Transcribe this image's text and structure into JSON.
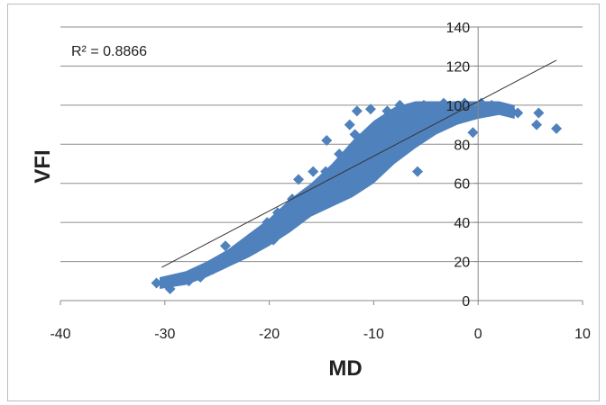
{
  "chart_data": {
    "type": "scatter",
    "title": "",
    "xlabel": "MD",
    "ylabel": "VFI",
    "xlim": [
      -40,
      10
    ],
    "ylim": [
      0,
      140
    ],
    "x_ticks": [
      -40,
      -30,
      -20,
      -10,
      0,
      10
    ],
    "y_ticks": [
      0,
      20,
      40,
      60,
      80,
      100,
      120,
      140
    ],
    "x_tick_labels": [
      "-40",
      "-30",
      "-20",
      "-10",
      "0",
      "10"
    ],
    "y_tick_labels": [
      "0",
      "20",
      "40",
      "60",
      "80",
      "100",
      "120",
      "140"
    ],
    "grid": "horizontal",
    "legend": "none",
    "annotation": "R² = 0.8866",
    "marker_color": "#4f81bd",
    "trendline_color": "#333333",
    "trendline": {
      "x": [
        -30.3,
        7.5
      ],
      "y": [
        17,
        123
      ]
    },
    "points": [
      {
        "x": -30.8,
        "y": 9
      },
      {
        "x": -29.5,
        "y": 6
      },
      {
        "x": -27.7,
        "y": 10
      },
      {
        "x": -26.6,
        "y": 12
      },
      {
        "x": -25.4,
        "y": 16
      },
      {
        "x": -24.3,
        "y": 19
      },
      {
        "x": -23.5,
        "y": 22
      },
      {
        "x": -22.5,
        "y": 27
      },
      {
        "x": -24.2,
        "y": 28
      },
      {
        "x": -21.8,
        "y": 30
      },
      {
        "x": -20.8,
        "y": 34
      },
      {
        "x": -19.6,
        "y": 31
      },
      {
        "x": -20.2,
        "y": 40
      },
      {
        "x": -19.2,
        "y": 45
      },
      {
        "x": -18.2,
        "y": 42
      },
      {
        "x": -17.8,
        "y": 52
      },
      {
        "x": -16.6,
        "y": 48
      },
      {
        "x": -17.2,
        "y": 62
      },
      {
        "x": -16.0,
        "y": 57
      },
      {
        "x": -15.2,
        "y": 55
      },
      {
        "x": -15.8,
        "y": 66
      },
      {
        "x": -14.6,
        "y": 66
      },
      {
        "x": -14.2,
        "y": 52
      },
      {
        "x": -13.3,
        "y": 75
      },
      {
        "x": -14.5,
        "y": 82
      },
      {
        "x": -13.0,
        "y": 62
      },
      {
        "x": -12.2,
        "y": 70
      },
      {
        "x": -11.2,
        "y": 80
      },
      {
        "x": -11.8,
        "y": 85
      },
      {
        "x": -12.3,
        "y": 90
      },
      {
        "x": -11.6,
        "y": 97
      },
      {
        "x": -10.3,
        "y": 98
      },
      {
        "x": -9.5,
        "y": 90
      },
      {
        "x": -10.0,
        "y": 75
      },
      {
        "x": -8.7,
        "y": 97
      },
      {
        "x": -8.3,
        "y": 85
      },
      {
        "x": -7.5,
        "y": 100
      },
      {
        "x": -6.8,
        "y": 94
      },
      {
        "x": -6.3,
        "y": 88
      },
      {
        "x": -5.8,
        "y": 66
      },
      {
        "x": -5.2,
        "y": 100
      },
      {
        "x": -4.3,
        "y": 97
      },
      {
        "x": -3.3,
        "y": 101
      },
      {
        "x": -2.3,
        "y": 96
      },
      {
        "x": -1.3,
        "y": 101
      },
      {
        "x": -0.5,
        "y": 86
      },
      {
        "x": 0.3,
        "y": 101
      },
      {
        "x": 1.3,
        "y": 100
      },
      {
        "x": 2.2,
        "y": 99
      },
      {
        "x": 3.2,
        "y": 97
      },
      {
        "x": 3.8,
        "y": 96
      },
      {
        "x": 5.8,
        "y": 96
      },
      {
        "x": 5.6,
        "y": 90
      },
      {
        "x": 7.5,
        "y": 88
      }
    ],
    "dense_band": {
      "x": [
        -30.5,
        -28,
        -26,
        -24,
        -22,
        -20,
        -18,
        -16,
        -14,
        -12,
        -10,
        -8,
        -6,
        -4,
        -2,
        0,
        2,
        3.5
      ],
      "y_low": [
        6,
        8,
        12,
        17,
        22,
        28,
        35,
        43,
        48,
        53,
        60,
        70,
        78,
        85,
        90,
        93,
        95,
        93
      ],
      "y_high": [
        12,
        15,
        20,
        26,
        34,
        42,
        52,
        60,
        70,
        82,
        92,
        99,
        102,
        102,
        102,
        102,
        102,
        100
      ]
    }
  }
}
